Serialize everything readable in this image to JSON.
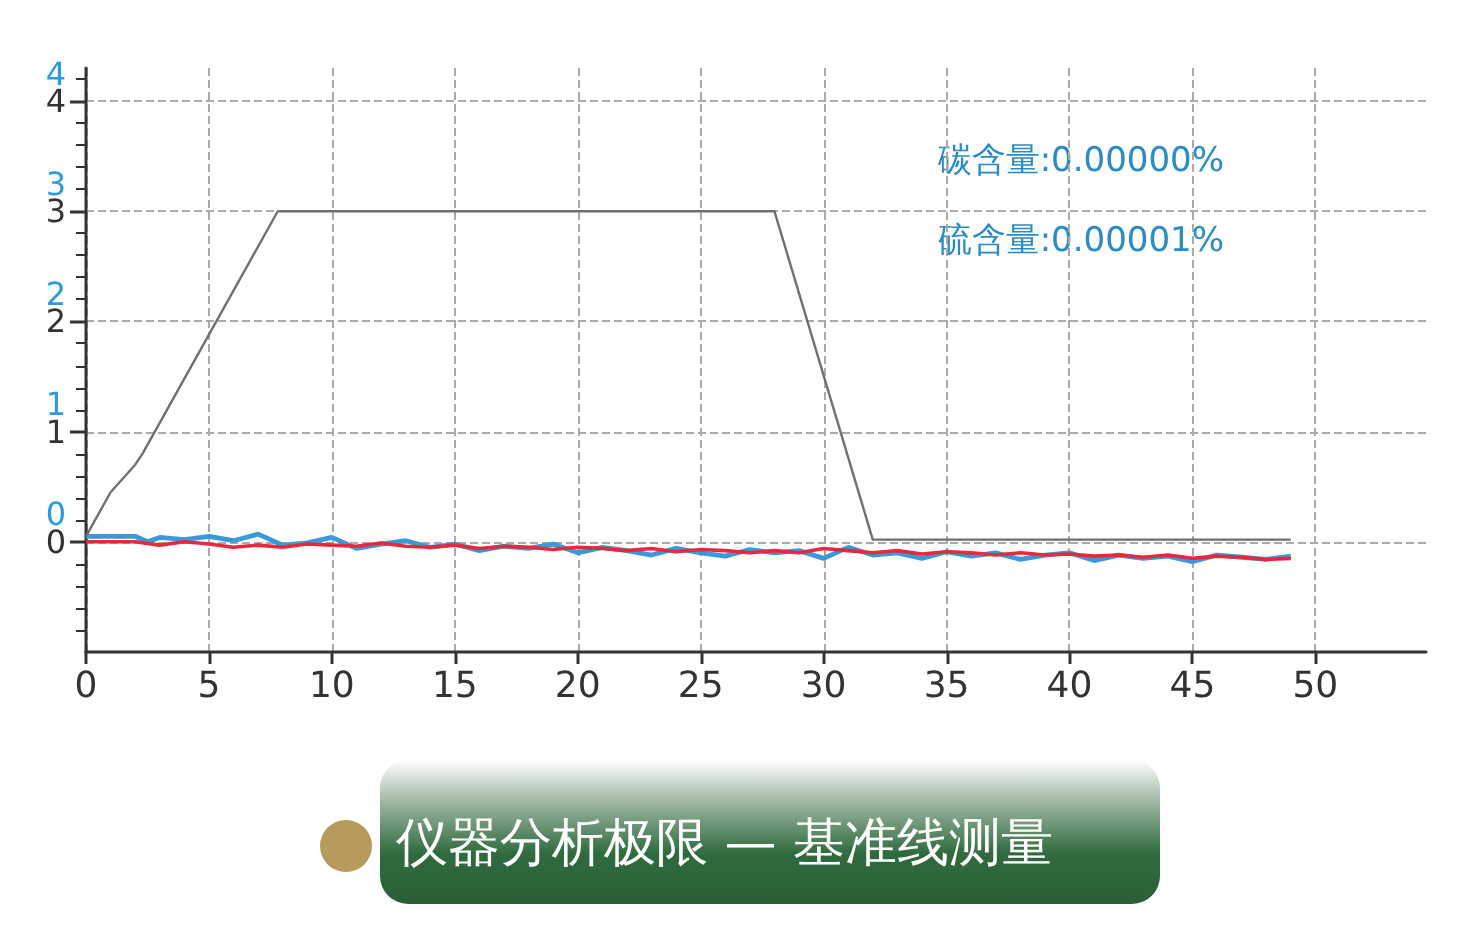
{
  "chart_data": {
    "type": "line",
    "title": "仪器分析极限 — 基准线测量",
    "annotations": [
      "碳含量:0.00000%",
      "硫含量:0.00001%"
    ],
    "xlim": [
      0,
      54.5
    ],
    "xticks": [
      0,
      5,
      10,
      15,
      20,
      25,
      30,
      35,
      40,
      45,
      50
    ],
    "ylim": [
      -1,
      4.3
    ],
    "yticks": [
      0,
      1,
      2,
      3,
      4
    ],
    "y2lim": [
      -1.25,
      4.05
    ],
    "y2ticks": [
      0,
      1,
      2,
      3,
      4
    ],
    "grid": true,
    "marker": "none",
    "line_style": "solid",
    "series": [
      {
        "color": "#707070",
        "x": [
          0,
          1,
          2,
          2.3,
          7.8,
          28,
          32,
          49
        ],
        "values": [
          0.05,
          0.45,
          0.7,
          0.8,
          3,
          3,
          0.02,
          0.02
        ]
      },
      {
        "color": "#e8283c",
        "x": [
          0,
          2,
          3,
          4,
          5,
          6,
          7,
          8,
          9,
          10,
          11,
          12,
          13,
          14,
          15,
          16,
          17,
          18,
          19,
          20,
          21,
          22,
          23,
          24,
          25,
          26,
          27,
          28,
          29,
          30,
          31,
          32,
          33,
          34,
          35,
          36,
          37,
          38,
          39,
          40,
          41,
          42,
          43,
          44,
          45,
          46,
          47,
          48,
          49
        ],
        "values": [
          0,
          0,
          -0.03,
          0,
          -0.02,
          -0.05,
          -0.03,
          -0.05,
          -0.02,
          -0.03,
          -0.04,
          -0.01,
          -0.04,
          -0.05,
          -0.03,
          -0.06,
          -0.04,
          -0.05,
          -0.07,
          -0.05,
          -0.06,
          -0.08,
          -0.06,
          -0.09,
          -0.07,
          -0.08,
          -0.1,
          -0.08,
          -0.1,
          -0.06,
          -0.08,
          -0.1,
          -0.08,
          -0.11,
          -0.09,
          -0.1,
          -0.12,
          -0.1,
          -0.12,
          -0.11,
          -0.13,
          -0.12,
          -0.14,
          -0.12,
          -0.15,
          -0.13,
          -0.14,
          -0.16,
          -0.15
        ]
      },
      {
        "color": "#3a9ad9",
        "x": [
          0,
          2,
          2.5,
          3,
          4,
          5,
          6,
          7,
          8,
          9,
          10,
          11,
          12,
          13,
          14,
          15,
          16,
          17,
          18,
          19,
          20,
          21,
          22,
          23,
          24,
          25,
          26,
          27,
          28,
          29,
          30,
          31,
          32,
          33,
          34,
          35,
          36,
          37,
          38,
          39,
          40,
          41,
          42,
          43,
          44,
          45,
          46,
          47,
          48,
          49
        ],
        "values": [
          0.05,
          0.05,
          0,
          0.04,
          0.02,
          0.05,
          0.01,
          0.07,
          -0.03,
          -0.01,
          0.04,
          -0.06,
          -0.02,
          0.01,
          -0.05,
          -0.02,
          -0.08,
          -0.04,
          -0.06,
          -0.02,
          -0.1,
          -0.05,
          -0.08,
          -0.12,
          -0.06,
          -0.1,
          -0.13,
          -0.07,
          -0.1,
          -0.08,
          -0.15,
          -0.05,
          -0.12,
          -0.1,
          -0.15,
          -0.09,
          -0.13,
          -0.1,
          -0.16,
          -0.12,
          -0.1,
          -0.17,
          -0.12,
          -0.15,
          -0.13,
          -0.18,
          -0.12,
          -0.14,
          -0.16,
          -0.13
        ]
      }
    ]
  }
}
